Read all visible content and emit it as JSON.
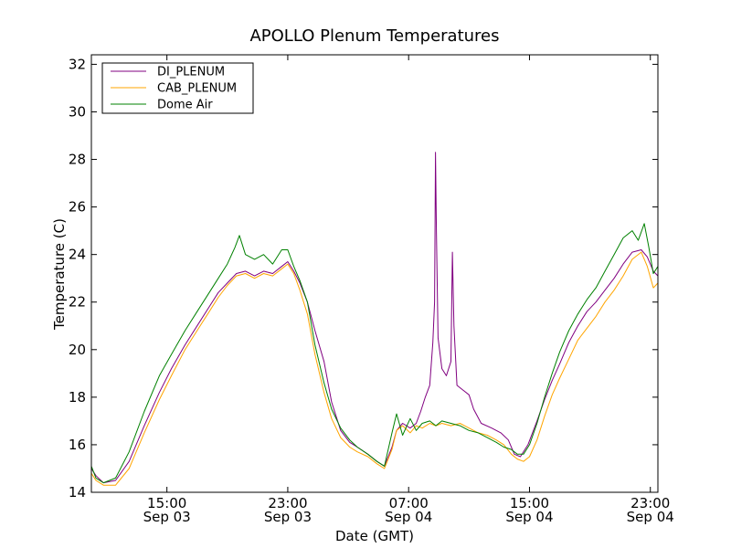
{
  "chart_data": {
    "type": "line",
    "title": "APOLLO Plenum Temperatures",
    "xlabel": "Date (GMT)",
    "ylabel": "Temperature (C)",
    "xunit": "hours since Sep 03 00:00 GMT",
    "xlim": [
      10.0,
      47.5
    ],
    "ylim": [
      14,
      32.4
    ],
    "yticks": [
      14,
      16,
      18,
      20,
      22,
      24,
      26,
      28,
      30,
      32
    ],
    "xticks": [
      {
        "x": 15,
        "time": "15:00",
        "date": "Sep 03"
      },
      {
        "x": 23,
        "time": "23:00",
        "date": "Sep 03"
      },
      {
        "x": 31,
        "time": "07:00",
        "date": "Sep 04"
      },
      {
        "x": 39,
        "time": "15:00",
        "date": "Sep 04"
      },
      {
        "x": 47,
        "time": "23:00",
        "date": "Sep 04"
      }
    ],
    "legend_position": "top-left",
    "series": [
      {
        "name": "DI_PLENUM",
        "color": "#800080",
        "points": [
          [
            10.0,
            15.0
          ],
          [
            10.3,
            14.7
          ],
          [
            10.8,
            14.4
          ],
          [
            11.6,
            14.5
          ],
          [
            12.5,
            15.3
          ],
          [
            13.5,
            16.8
          ],
          [
            14.5,
            18.2
          ],
          [
            15.3,
            19.2
          ],
          [
            16.2,
            20.2
          ],
          [
            17.0,
            21.0
          ],
          [
            17.8,
            21.8
          ],
          [
            18.4,
            22.4
          ],
          [
            19.0,
            22.8
          ],
          [
            19.6,
            23.2
          ],
          [
            20.2,
            23.3
          ],
          [
            20.8,
            23.1
          ],
          [
            21.4,
            23.3
          ],
          [
            22.0,
            23.2
          ],
          [
            22.6,
            23.5
          ],
          [
            23.0,
            23.7
          ],
          [
            23.4,
            23.3
          ],
          [
            23.8,
            22.8
          ],
          [
            24.3,
            22.0
          ],
          [
            24.8,
            20.8
          ],
          [
            25.4,
            19.5
          ],
          [
            25.9,
            17.8
          ],
          [
            26.5,
            16.6
          ],
          [
            27.1,
            16.1
          ],
          [
            27.6,
            15.9
          ],
          [
            28.3,
            15.6
          ],
          [
            28.9,
            15.3
          ],
          [
            29.4,
            15.1
          ],
          [
            29.9,
            15.9
          ],
          [
            30.2,
            16.6
          ],
          [
            30.6,
            16.9
          ],
          [
            31.1,
            16.7
          ],
          [
            31.5,
            16.9
          ],
          [
            31.8,
            17.4
          ],
          [
            32.1,
            18.0
          ],
          [
            32.4,
            18.5
          ],
          [
            32.6,
            20.3
          ],
          [
            32.72,
            22.0
          ],
          [
            32.78,
            28.3
          ],
          [
            32.84,
            25.0
          ],
          [
            32.95,
            20.5
          ],
          [
            33.2,
            19.2
          ],
          [
            33.5,
            18.9
          ],
          [
            33.8,
            19.5
          ],
          [
            33.9,
            24.1
          ],
          [
            34.0,
            21.0
          ],
          [
            34.2,
            18.5
          ],
          [
            34.6,
            18.3
          ],
          [
            35.0,
            18.1
          ],
          [
            35.3,
            17.5
          ],
          [
            35.8,
            16.9
          ],
          [
            36.5,
            16.7
          ],
          [
            37.1,
            16.5
          ],
          [
            37.6,
            16.2
          ],
          [
            38.0,
            15.6
          ],
          [
            38.4,
            15.5
          ],
          [
            38.9,
            16.0
          ],
          [
            39.5,
            17.0
          ],
          [
            40.0,
            17.9
          ],
          [
            40.5,
            18.7
          ],
          [
            41.0,
            19.4
          ],
          [
            41.6,
            20.3
          ],
          [
            42.2,
            21.0
          ],
          [
            42.8,
            21.6
          ],
          [
            43.4,
            22.0
          ],
          [
            44.0,
            22.5
          ],
          [
            44.6,
            23.0
          ],
          [
            45.2,
            23.6
          ],
          [
            45.8,
            24.1
          ],
          [
            46.4,
            24.2
          ],
          [
            46.8,
            23.9
          ],
          [
            47.2,
            23.3
          ],
          [
            47.5,
            23.1
          ]
        ]
      },
      {
        "name": "CAB_PLENUM",
        "color": "#ffa500",
        "points": [
          [
            10.0,
            14.8
          ],
          [
            10.3,
            14.5
          ],
          [
            10.8,
            14.3
          ],
          [
            11.6,
            14.3
          ],
          [
            12.5,
            15.0
          ],
          [
            13.5,
            16.5
          ],
          [
            14.5,
            17.9
          ],
          [
            15.3,
            18.9
          ],
          [
            16.2,
            20.0
          ],
          [
            17.0,
            20.8
          ],
          [
            17.8,
            21.6
          ],
          [
            18.4,
            22.2
          ],
          [
            19.0,
            22.7
          ],
          [
            19.6,
            23.1
          ],
          [
            20.2,
            23.2
          ],
          [
            20.8,
            23.0
          ],
          [
            21.4,
            23.2
          ],
          [
            22.0,
            23.1
          ],
          [
            22.6,
            23.4
          ],
          [
            23.0,
            23.6
          ],
          [
            23.4,
            23.2
          ],
          [
            23.8,
            22.5
          ],
          [
            24.3,
            21.5
          ],
          [
            24.8,
            19.8
          ],
          [
            25.4,
            18.2
          ],
          [
            25.9,
            17.1
          ],
          [
            26.5,
            16.3
          ],
          [
            27.1,
            15.9
          ],
          [
            27.6,
            15.7
          ],
          [
            28.3,
            15.5
          ],
          [
            28.9,
            15.2
          ],
          [
            29.4,
            15.0
          ],
          [
            29.9,
            15.8
          ],
          [
            30.2,
            16.6
          ],
          [
            30.6,
            16.8
          ],
          [
            31.1,
            16.5
          ],
          [
            31.5,
            16.8
          ],
          [
            31.9,
            16.7
          ],
          [
            32.4,
            16.9
          ],
          [
            32.8,
            16.8
          ],
          [
            33.2,
            16.9
          ],
          [
            33.8,
            16.8
          ],
          [
            34.4,
            16.9
          ],
          [
            35.0,
            16.7
          ],
          [
            35.6,
            16.5
          ],
          [
            36.2,
            16.4
          ],
          [
            36.8,
            16.2
          ],
          [
            37.3,
            16.0
          ],
          [
            37.8,
            15.6
          ],
          [
            38.2,
            15.4
          ],
          [
            38.6,
            15.3
          ],
          [
            39.0,
            15.5
          ],
          [
            39.5,
            16.2
          ],
          [
            40.0,
            17.2
          ],
          [
            40.5,
            18.1
          ],
          [
            41.0,
            18.8
          ],
          [
            41.6,
            19.6
          ],
          [
            42.2,
            20.4
          ],
          [
            42.8,
            20.9
          ],
          [
            43.4,
            21.4
          ],
          [
            44.0,
            22.0
          ],
          [
            44.6,
            22.5
          ],
          [
            45.2,
            23.1
          ],
          [
            45.8,
            23.8
          ],
          [
            46.4,
            24.1
          ],
          [
            46.8,
            23.5
          ],
          [
            47.2,
            22.6
          ],
          [
            47.5,
            22.8
          ]
        ]
      },
      {
        "name": "Dome Air",
        "color": "#008000",
        "points": [
          [
            10.0,
            15.1
          ],
          [
            10.3,
            14.6
          ],
          [
            10.8,
            14.4
          ],
          [
            11.6,
            14.6
          ],
          [
            12.5,
            15.7
          ],
          [
            13.5,
            17.4
          ],
          [
            14.5,
            18.9
          ],
          [
            15.3,
            19.8
          ],
          [
            16.2,
            20.8
          ],
          [
            17.0,
            21.6
          ],
          [
            17.8,
            22.4
          ],
          [
            18.4,
            23.0
          ],
          [
            19.0,
            23.6
          ],
          [
            19.5,
            24.3
          ],
          [
            19.8,
            24.8
          ],
          [
            20.2,
            24.0
          ],
          [
            20.8,
            23.8
          ],
          [
            21.4,
            24.0
          ],
          [
            22.0,
            23.6
          ],
          [
            22.6,
            24.2
          ],
          [
            23.0,
            24.2
          ],
          [
            23.4,
            23.5
          ],
          [
            23.8,
            22.9
          ],
          [
            24.3,
            22.0
          ],
          [
            24.8,
            20.2
          ],
          [
            25.4,
            18.6
          ],
          [
            25.9,
            17.5
          ],
          [
            26.5,
            16.7
          ],
          [
            27.1,
            16.2
          ],
          [
            27.6,
            15.9
          ],
          [
            28.3,
            15.6
          ],
          [
            28.9,
            15.3
          ],
          [
            29.4,
            15.1
          ],
          [
            29.9,
            16.5
          ],
          [
            30.2,
            17.3
          ],
          [
            30.6,
            16.4
          ],
          [
            31.1,
            17.1
          ],
          [
            31.5,
            16.6
          ],
          [
            31.9,
            16.9
          ],
          [
            32.4,
            17.0
          ],
          [
            32.8,
            16.8
          ],
          [
            33.2,
            17.0
          ],
          [
            33.8,
            16.9
          ],
          [
            34.4,
            16.8
          ],
          [
            35.0,
            16.6
          ],
          [
            35.6,
            16.5
          ],
          [
            36.2,
            16.3
          ],
          [
            36.8,
            16.1
          ],
          [
            37.3,
            15.9
          ],
          [
            37.8,
            15.8
          ],
          [
            38.2,
            15.6
          ],
          [
            38.6,
            15.6
          ],
          [
            39.0,
            16.0
          ],
          [
            39.5,
            16.9
          ],
          [
            40.0,
            18.0
          ],
          [
            40.5,
            19.0
          ],
          [
            41.0,
            19.9
          ],
          [
            41.6,
            20.8
          ],
          [
            42.2,
            21.5
          ],
          [
            42.8,
            22.1
          ],
          [
            43.4,
            22.6
          ],
          [
            44.0,
            23.3
          ],
          [
            44.6,
            24.0
          ],
          [
            45.2,
            24.7
          ],
          [
            45.8,
            25.0
          ],
          [
            46.2,
            24.6
          ],
          [
            46.6,
            25.3
          ],
          [
            46.9,
            24.3
          ],
          [
            47.2,
            23.2
          ],
          [
            47.5,
            23.5
          ]
        ]
      }
    ]
  }
}
